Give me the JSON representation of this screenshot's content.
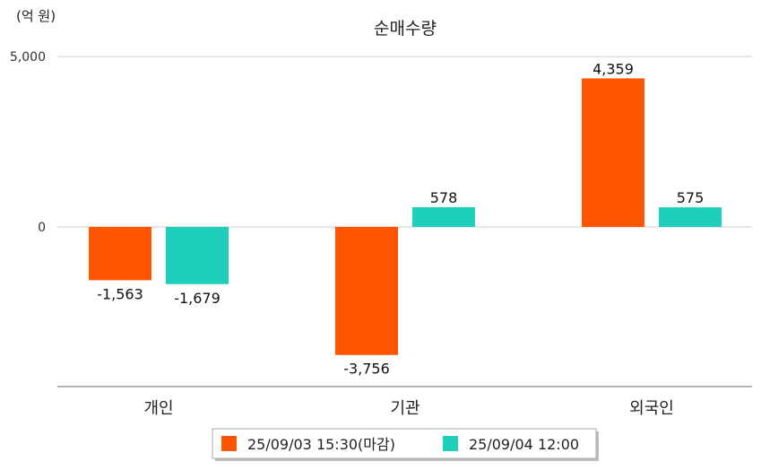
{
  "chart_data": {
    "type": "bar",
    "title": "순매수량",
    "unit_label": "(억 원)",
    "categories": [
      "개인",
      "기관",
      "외국인"
    ],
    "series": [
      {
        "name": "25/09/03 15:30(마감)",
        "values": [
          -1563,
          -3756,
          4359
        ],
        "color": "#ff5500"
      },
      {
        "name": "25/09/04 12:00",
        "values": [
          -1679,
          578,
          575
        ],
        "color": "#1ecfbc"
      }
    ],
    "data_labels": [
      [
        "-1,563",
        "-3,756",
        "4,359"
      ],
      [
        "-1,679",
        "578",
        "575"
      ]
    ],
    "y_ticks": [
      0,
      5000
    ],
    "y_tick_labels": [
      "0",
      "5,000"
    ],
    "ylim": [
      -4700,
      5000
    ],
    "grid": true,
    "legend_position": "bottom"
  }
}
